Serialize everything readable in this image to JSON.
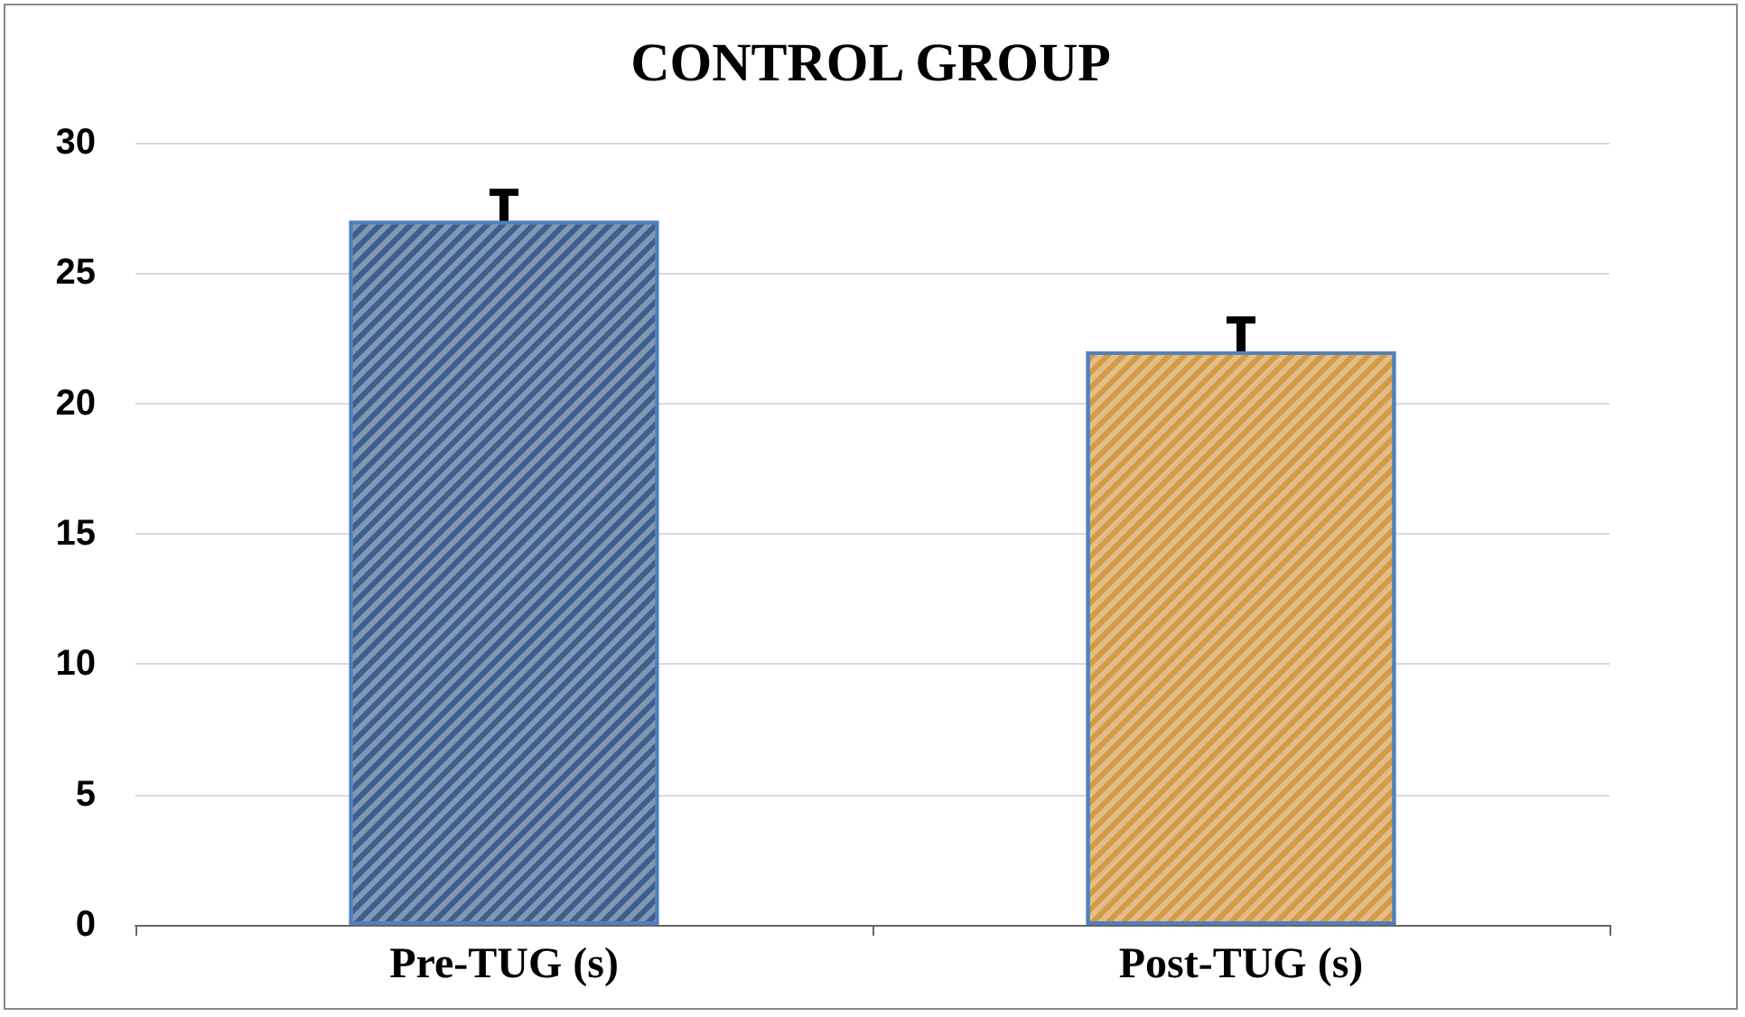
{
  "chart_data": {
    "type": "bar",
    "title": "CONTROL GROUP",
    "categories": [
      "Pre-TUG (s)",
      "Post-TUG (s)"
    ],
    "series": [
      {
        "colors": [
          "#3d5f8c",
          "#d49a45"
        ],
        "values": [
          27,
          22
        ],
        "errors": [
          [
            27,
            28.1
          ],
          [
            22,
            23.2
          ]
        ]
      }
    ],
    "ylim": [
      0,
      30
    ],
    "yticks": [
      0,
      5,
      10,
      15,
      20,
      25,
      30
    ],
    "grid": "y"
  }
}
